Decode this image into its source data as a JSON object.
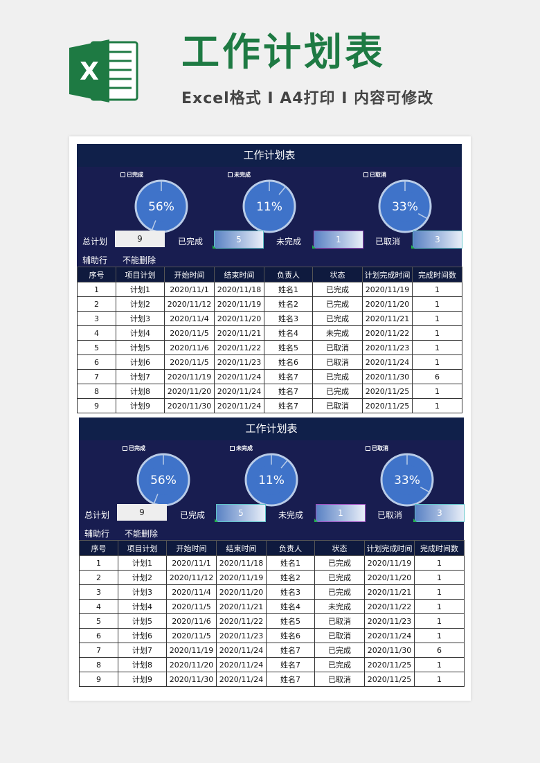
{
  "header": {
    "logo_letter": "X",
    "title": "工作计划表",
    "subtitle": "Excel格式 I A4打印 I 内容可修改"
  },
  "colors": {
    "brand_green": "#1e7a43",
    "dark_navy": "#10204a",
    "dashboard_navy": "#181d50",
    "pie_blue": "#3f73c9",
    "pie_border": "#b9cce8"
  },
  "sheet": {
    "title": "工作计划表",
    "legends": [
      "已完成",
      "未完成",
      "已取消"
    ],
    "pies": [
      {
        "label": "56%",
        "percent": 56
      },
      {
        "label": "11%",
        "percent": 11
      },
      {
        "label": "33%",
        "percent": 33
      }
    ],
    "summary": {
      "total_label": "总计划",
      "total_value": "9",
      "done_label": "已完成",
      "done_value": "5",
      "undone_label": "未完成",
      "undone_value": "1",
      "cancel_label": "已取消",
      "cancel_value": "3",
      "aux_label": "辅助行",
      "aux_note": "不能删除"
    },
    "columns": [
      "序号",
      "项目计划",
      "开始时间",
      "结束时间",
      "负责人",
      "状态",
      "计划完成时间",
      "完成时间数"
    ],
    "rows": [
      [
        "1",
        "计划1",
        "2020/11/1",
        "2020/11/18",
        "姓名1",
        "已完成",
        "2020/11/19",
        "1"
      ],
      [
        "2",
        "计划2",
        "2020/11/12",
        "2020/11/19",
        "姓名2",
        "已完成",
        "2020/11/20",
        "1"
      ],
      [
        "3",
        "计划3",
        "2020/11/4",
        "2020/11/20",
        "姓名3",
        "已完成",
        "2020/11/21",
        "1"
      ],
      [
        "4",
        "计划4",
        "2020/11/5",
        "2020/11/21",
        "姓名4",
        "未完成",
        "2020/11/22",
        "1"
      ],
      [
        "5",
        "计划5",
        "2020/11/6",
        "2020/11/22",
        "姓名5",
        "已取消",
        "2020/11/23",
        "1"
      ],
      [
        "6",
        "计划6",
        "2020/11/5",
        "2020/11/23",
        "姓名6",
        "已取消",
        "2020/11/24",
        "1"
      ],
      [
        "7",
        "计划7",
        "2020/11/19",
        "2020/11/24",
        "姓名7",
        "已完成",
        "2020/11/30",
        "6"
      ],
      [
        "8",
        "计划8",
        "2020/11/20",
        "2020/11/24",
        "姓名7",
        "已完成",
        "2020/11/25",
        "1"
      ],
      [
        "9",
        "计划9",
        "2020/11/30",
        "2020/11/24",
        "姓名7",
        "已取消",
        "2020/11/25",
        "1"
      ]
    ]
  }
}
